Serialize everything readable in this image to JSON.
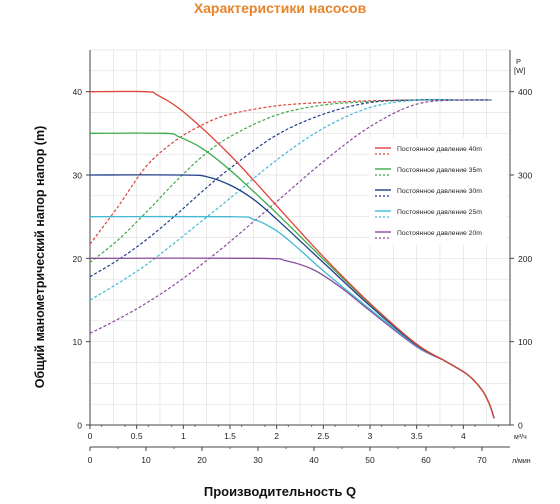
{
  "page": {
    "title": "Характеристики насосов",
    "x_title": "Производительность  Q",
    "y_title": "Общий манометрический напор напор (m)"
  },
  "chart_data": {
    "type": "line",
    "x_primary": {
      "unit": "м³/ч",
      "range": [
        0,
        4.5
      ],
      "ticks": [
        "0",
        "0.5",
        "1",
        "1.5",
        "2",
        "2.5",
        "3",
        "3.5",
        "4"
      ]
    },
    "x_secondary": {
      "unit": "л/мин",
      "range": [
        0,
        75
      ],
      "ticks": [
        "0",
        "10",
        "20",
        "30",
        "40",
        "50",
        "60",
        "70"
      ]
    },
    "y_left": {
      "range": [
        0,
        45
      ],
      "ticks": [
        "0",
        "10",
        "20",
        "30",
        "40"
      ]
    },
    "y_right": {
      "unit": "P\n[W]",
      "unit_line1": "P",
      "unit_line2": "[W]",
      "range": [
        0,
        450
      ],
      "ticks": [
        "0",
        "100",
        "200",
        "300",
        "400"
      ]
    },
    "grid": true,
    "legend_placement": "right",
    "series": [
      {
        "name": "Постоянное давление 40m",
        "color": "#e0443a",
        "head": [
          [
            0,
            40
          ],
          [
            0.6,
            40
          ],
          [
            0.72,
            39.6
          ],
          [
            1,
            37.6
          ],
          [
            1.5,
            32.4
          ],
          [
            2,
            26.3
          ],
          [
            2.5,
            20.2
          ],
          [
            3,
            14.6
          ],
          [
            3.5,
            9.7
          ],
          [
            3.8,
            7.7
          ],
          [
            4.05,
            6
          ],
          [
            4.2,
            4.2
          ],
          [
            4.28,
            2.5
          ],
          [
            4.33,
            0.8
          ]
        ],
        "power": [
          [
            0,
            217
          ],
          [
            0.3,
            262
          ],
          [
            0.6,
            310
          ],
          [
            0.9,
            340
          ],
          [
            1.2,
            360
          ],
          [
            1.5,
            373
          ],
          [
            2,
            383
          ],
          [
            2.5,
            387
          ],
          [
            3,
            389
          ],
          [
            3.5,
            390
          ],
          [
            4,
            390
          ],
          [
            4.3,
            390
          ]
        ]
      },
      {
        "name": "Постоянное давление 35m",
        "color": "#3aaa48",
        "head": [
          [
            0,
            35
          ],
          [
            0.8,
            35
          ],
          [
            0.95,
            34.6
          ],
          [
            1.2,
            33.2
          ],
          [
            1.5,
            30.6
          ],
          [
            2,
            25.4
          ],
          [
            2.5,
            19.9
          ],
          [
            3,
            14.5
          ],
          [
            3.5,
            9.7
          ],
          [
            3.8,
            7.7
          ],
          [
            4.05,
            6
          ],
          [
            4.2,
            4.2
          ],
          [
            4.28,
            2.5
          ],
          [
            4.33,
            0.8
          ]
        ],
        "power": [
          [
            0,
            195
          ],
          [
            0.3,
            222
          ],
          [
            0.6,
            255
          ],
          [
            0.9,
            290
          ],
          [
            1.2,
            322
          ],
          [
            1.5,
            346
          ],
          [
            2,
            372
          ],
          [
            2.5,
            384
          ],
          [
            3,
            388
          ],
          [
            3.5,
            390
          ],
          [
            4,
            390
          ],
          [
            4.3,
            390
          ]
        ]
      },
      {
        "name": "Постоянное давление 30m",
        "color": "#1f3f8a",
        "head": [
          [
            0,
            30
          ],
          [
            1,
            30
          ],
          [
            1.25,
            29.8
          ],
          [
            1.5,
            28.8
          ],
          [
            1.75,
            27.1
          ],
          [
            2,
            24.7
          ],
          [
            2.5,
            19.5
          ],
          [
            3,
            14.3
          ],
          [
            3.5,
            9.6
          ],
          [
            3.8,
            7.7
          ],
          [
            4.05,
            6
          ],
          [
            4.2,
            4.2
          ],
          [
            4.28,
            2.5
          ],
          [
            4.33,
            0.8
          ]
        ],
        "power": [
          [
            0,
            178
          ],
          [
            0.3,
            198
          ],
          [
            0.6,
            222
          ],
          [
            0.9,
            250
          ],
          [
            1.2,
            280
          ],
          [
            1.5,
            308
          ],
          [
            2,
            348
          ],
          [
            2.5,
            373
          ],
          [
            3,
            387
          ],
          [
            3.5,
            390
          ],
          [
            4,
            390
          ],
          [
            4.3,
            390
          ]
        ]
      },
      {
        "name": "Постоянное давление 25m",
        "color": "#43b8d4",
        "head": [
          [
            0,
            25
          ],
          [
            1.5,
            25
          ],
          [
            1.75,
            24.7
          ],
          [
            2,
            23.3
          ],
          [
            2.25,
            21
          ],
          [
            2.5,
            18.5
          ],
          [
            3,
            13.9
          ],
          [
            3.5,
            9.5
          ],
          [
            3.8,
            7.7
          ],
          [
            4.05,
            6
          ],
          [
            4.2,
            4.2
          ],
          [
            4.28,
            2.5
          ],
          [
            4.33,
            0.8
          ]
        ],
        "power": [
          [
            0,
            150
          ],
          [
            0.3,
            170
          ],
          [
            0.6,
            192
          ],
          [
            0.9,
            218
          ],
          [
            1.2,
            245
          ],
          [
            1.5,
            272
          ],
          [
            2,
            318
          ],
          [
            2.5,
            356
          ],
          [
            3,
            381
          ],
          [
            3.5,
            390
          ],
          [
            4,
            390
          ],
          [
            4.3,
            390
          ]
        ]
      },
      {
        "name": "Постоянное давление 20m",
        "color": "#8a4c9c",
        "head": [
          [
            0,
            20
          ],
          [
            1.8,
            20
          ],
          [
            2.1,
            19.7
          ],
          [
            2.4,
            18.6
          ],
          [
            2.7,
            16.4
          ],
          [
            3,
            13.7
          ],
          [
            3.5,
            9.4
          ],
          [
            3.8,
            7.7
          ],
          [
            4.05,
            6
          ],
          [
            4.2,
            4.2
          ],
          [
            4.28,
            2.5
          ],
          [
            4.33,
            0.8
          ]
        ],
        "power": [
          [
            0,
            110
          ],
          [
            0.3,
            127
          ],
          [
            0.6,
            146
          ],
          [
            0.9,
            168
          ],
          [
            1.2,
            193
          ],
          [
            1.5,
            220
          ],
          [
            2,
            268
          ],
          [
            2.5,
            316
          ],
          [
            3,
            358
          ],
          [
            3.5,
            385
          ],
          [
            4,
            390
          ],
          [
            4.3,
            390
          ]
        ]
      }
    ]
  }
}
